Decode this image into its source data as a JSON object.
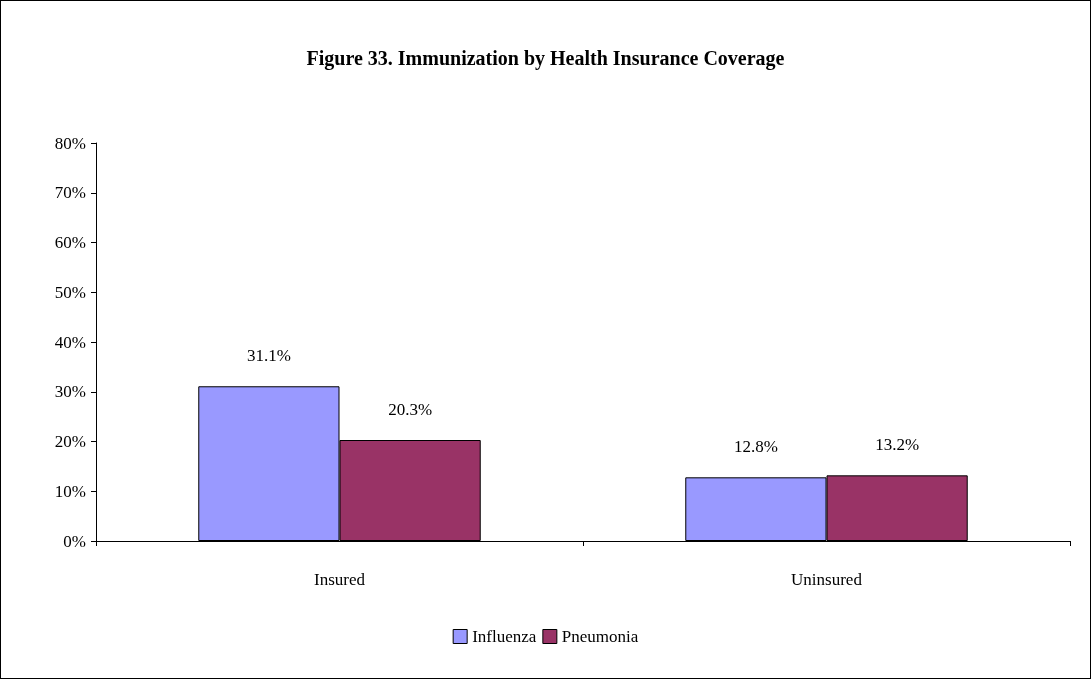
{
  "chart_data": {
    "type": "bar",
    "title": "Figure 33. Immunization by Health Insurance Coverage",
    "categories": [
      "Insured",
      "Uninsured"
    ],
    "series": [
      {
        "name": "Influenza",
        "color": "#9999ff",
        "values": [
          31.1,
          12.8
        ],
        "value_labels": [
          "31.1%",
          "12.8%"
        ]
      },
      {
        "name": "Pneumonia",
        "color": "#993366",
        "values": [
          20.3,
          13.2
        ],
        "value_labels": [
          "20.3%",
          "13.2%"
        ]
      }
    ],
    "ylim": [
      0,
      80
    ],
    "yticks": [
      {
        "value": 0,
        "label": "0%"
      },
      {
        "value": 10,
        "label": "10%"
      },
      {
        "value": 20,
        "label": "20%"
      },
      {
        "value": 30,
        "label": "30%"
      },
      {
        "value": 40,
        "label": "40%"
      },
      {
        "value": 50,
        "label": "50%"
      },
      {
        "value": 60,
        "label": "60%"
      },
      {
        "value": 70,
        "label": "70%"
      },
      {
        "value": 80,
        "label": "80%"
      }
    ],
    "grid": false,
    "legend": "bottom"
  }
}
